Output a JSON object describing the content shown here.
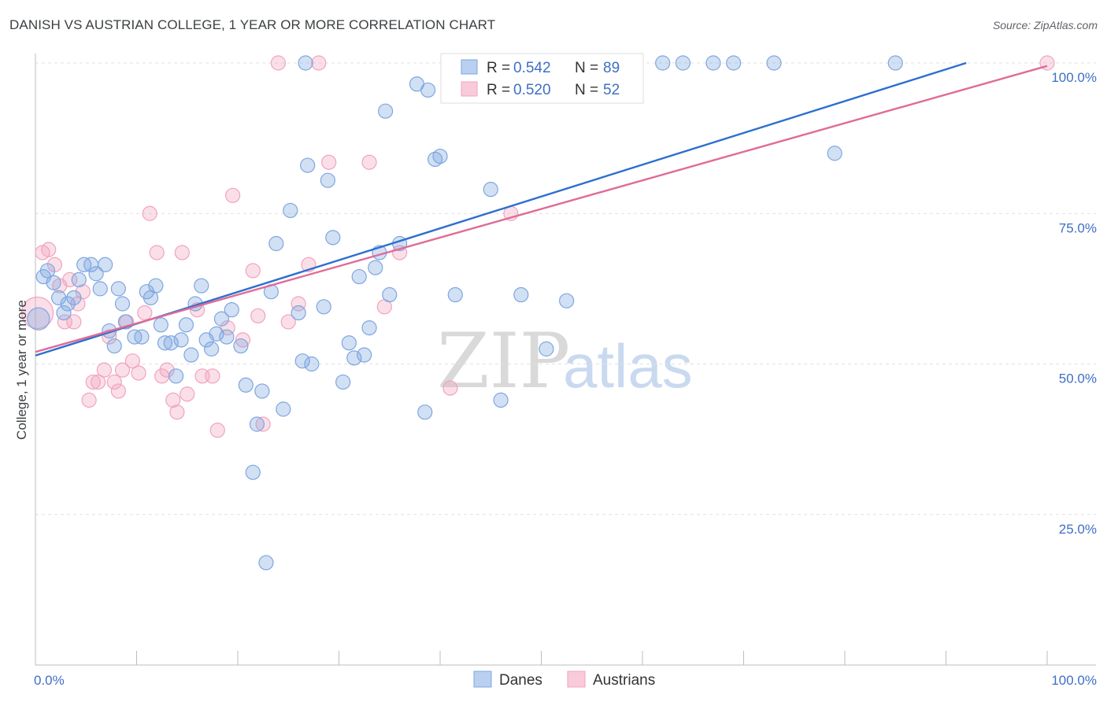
{
  "header": {
    "title": "DANISH VS AUSTRIAN COLLEGE, 1 YEAR OR MORE CORRELATION CHART",
    "source": "Source: ZipAtlas.com"
  },
  "watermark": {
    "part1": "ZIP",
    "part2": "atlas"
  },
  "legend_top": {
    "rows": [
      {
        "r_label": "R = ",
        "r_value": "0.542",
        "n_label": "N = ",
        "n_value": "89"
      },
      {
        "r_label": "R = ",
        "r_value": "0.520",
        "n_label": "N = ",
        "n_value": "52"
      }
    ]
  },
  "legend_bottom": {
    "items": [
      {
        "label": "Danes"
      },
      {
        "label": "Austrians"
      }
    ]
  },
  "chart_data": {
    "type": "scatter",
    "title": "DANISH VS AUSTRIAN COLLEGE, 1 YEAR OR MORE CORRELATION CHART",
    "xlabel": "",
    "ylabel": "College, 1 year or more",
    "xlim": [
      0,
      100
    ],
    "ylim": [
      0,
      100
    ],
    "x_tick_labels": [
      "0.0%",
      "100.0%"
    ],
    "y_ticks": [
      25,
      50,
      75,
      100
    ],
    "y_tick_labels": [
      "25.0%",
      "50.0%",
      "75.0%",
      "100.0%"
    ],
    "grid": true,
    "legend_position": "top-center",
    "colors": {
      "danes": "#7ea6e0",
      "danes_line": "#2d6fcf",
      "austrians": "#f2a3bd",
      "austrians_line": "#e06b97"
    },
    "series": [
      {
        "name": "Danes",
        "r": 0.542,
        "n": 89,
        "trend": {
          "x0": 0,
          "y0": 51.4,
          "x1": 92,
          "y1": 100
        },
        "points": [
          [
            0.3,
            57.5
          ],
          [
            0.8,
            64.5
          ],
          [
            1.2,
            65.5
          ],
          [
            1.8,
            63.5
          ],
          [
            2.3,
            61
          ],
          [
            2.8,
            58.5
          ],
          [
            3.2,
            60
          ],
          [
            3.8,
            61
          ],
          [
            4.3,
            64
          ],
          [
            4.8,
            66.5
          ],
          [
            5.5,
            66.5
          ],
          [
            6,
            65
          ],
          [
            6.4,
            62.5
          ],
          [
            6.9,
            66.5
          ],
          [
            7.3,
            55.5
          ],
          [
            7.8,
            53
          ],
          [
            8.2,
            62.5
          ],
          [
            8.6,
            60
          ],
          [
            8.9,
            57
          ],
          [
            9.8,
            54.5
          ],
          [
            10.5,
            54.5
          ],
          [
            11,
            62
          ],
          [
            11.4,
            61
          ],
          [
            11.9,
            63
          ],
          [
            12.4,
            56.5
          ],
          [
            12.8,
            53.5
          ],
          [
            13.4,
            53.5
          ],
          [
            13.9,
            48
          ],
          [
            14.4,
            54
          ],
          [
            14.9,
            56.5
          ],
          [
            15.4,
            51.5
          ],
          [
            15.8,
            60
          ],
          [
            16.4,
            63
          ],
          [
            16.9,
            54
          ],
          [
            17.4,
            52.5
          ],
          [
            17.9,
            55
          ],
          [
            18.4,
            57.5
          ],
          [
            18.9,
            54.5
          ],
          [
            19.4,
            59
          ],
          [
            20.3,
            53
          ],
          [
            20.8,
            46.5
          ],
          [
            21.5,
            32
          ],
          [
            21.9,
            40
          ],
          [
            22.4,
            45.5
          ],
          [
            22.8,
            17
          ],
          [
            23.3,
            62
          ],
          [
            23.8,
            70
          ],
          [
            24.5,
            42.5
          ],
          [
            25.2,
            75.5
          ],
          [
            26,
            58.5
          ],
          [
            26.4,
            50.5
          ],
          [
            26.9,
            83
          ],
          [
            27.3,
            50
          ],
          [
            26.7,
            100
          ],
          [
            28.5,
            59.5
          ],
          [
            28.9,
            80.5
          ],
          [
            29.4,
            71
          ],
          [
            30.4,
            47
          ],
          [
            31,
            53.5
          ],
          [
            31.5,
            51
          ],
          [
            32,
            64.5
          ],
          [
            32.5,
            51.5
          ],
          [
            33,
            56
          ],
          [
            33.6,
            66
          ],
          [
            34,
            68.5
          ],
          [
            34.6,
            92
          ],
          [
            35,
            61.5
          ],
          [
            36,
            70
          ],
          [
            37.7,
            96.5
          ],
          [
            38.5,
            42
          ],
          [
            38.8,
            95.5
          ],
          [
            39.5,
            84
          ],
          [
            40,
            84.5
          ],
          [
            41.5,
            61.5
          ],
          [
            44,
            100
          ],
          [
            45,
            79
          ],
          [
            46,
            44
          ],
          [
            48,
            61.5
          ],
          [
            50.5,
            52.5
          ],
          [
            52.5,
            60.5
          ],
          [
            54,
            100
          ],
          [
            64,
            100
          ],
          [
            67,
            100
          ],
          [
            69,
            100
          ],
          [
            73,
            100
          ],
          [
            79,
            85
          ],
          [
            85,
            100
          ],
          [
            57,
            100
          ],
          [
            62,
            100
          ]
        ]
      },
      {
        "name": "Austrians",
        "r": 0.52,
        "n": 52,
        "trend": {
          "x0": 0,
          "y0": 52,
          "x1": 100,
          "y1": 99.5
        },
        "points": [
          [
            0.2,
            58.5
          ],
          [
            0.7,
            68.5
          ],
          [
            1.3,
            69
          ],
          [
            1.9,
            66.5
          ],
          [
            2.4,
            63
          ],
          [
            2.9,
            57
          ],
          [
            3.4,
            64
          ],
          [
            3.8,
            57
          ],
          [
            4.2,
            60
          ],
          [
            4.7,
            62
          ],
          [
            5.3,
            44
          ],
          [
            5.7,
            47
          ],
          [
            6.2,
            47
          ],
          [
            6.8,
            49
          ],
          [
            7.3,
            54.5
          ],
          [
            7.8,
            47
          ],
          [
            8.2,
            45.5
          ],
          [
            8.6,
            49
          ],
          [
            9,
            57
          ],
          [
            9.6,
            50.5
          ],
          [
            10.2,
            48.5
          ],
          [
            10.8,
            58.5
          ],
          [
            11.3,
            75
          ],
          [
            12,
            68.5
          ],
          [
            12.5,
            48
          ],
          [
            13,
            49
          ],
          [
            13.6,
            44
          ],
          [
            14,
            42
          ],
          [
            14.5,
            68.5
          ],
          [
            15,
            45
          ],
          [
            16,
            59
          ],
          [
            16.5,
            48
          ],
          [
            17.5,
            48
          ],
          [
            18,
            39
          ],
          [
            19,
            56
          ],
          [
            19.5,
            78
          ],
          [
            20.5,
            54
          ],
          [
            21.5,
            65.5
          ],
          [
            22,
            58
          ],
          [
            22.5,
            40
          ],
          [
            24,
            100
          ],
          [
            25,
            57
          ],
          [
            26,
            60
          ],
          [
            27,
            66.5
          ],
          [
            28,
            100
          ],
          [
            29,
            83.5
          ],
          [
            33,
            83.5
          ],
          [
            34.5,
            59.5
          ],
          [
            36,
            68.5
          ],
          [
            41,
            46
          ],
          [
            47,
            75
          ],
          [
            100,
            100
          ]
        ]
      }
    ]
  }
}
